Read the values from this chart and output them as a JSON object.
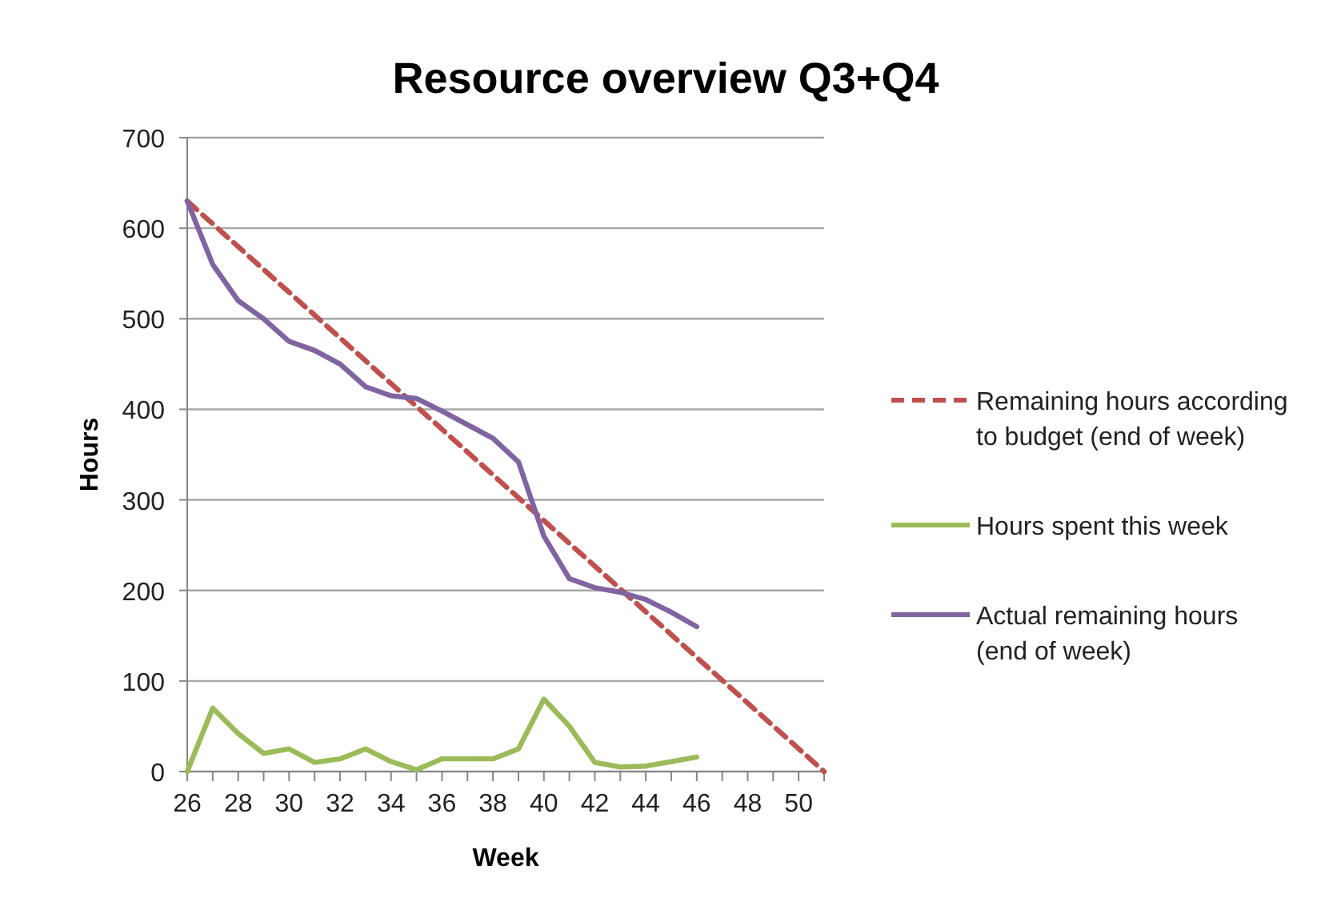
{
  "chart_data": {
    "type": "line",
    "title": "Resource overview Q3+Q4",
    "xlabel": "Week",
    "ylabel": "Hours",
    "xlim": [
      26,
      51
    ],
    "ylim": [
      0,
      700
    ],
    "xticks": [
      26,
      {
        "value": 27,
        "label": null
      },
      28,
      {
        "value": 29,
        "label": null
      },
      30,
      {
        "value": 31,
        "label": null
      },
      32,
      {
        "value": 33,
        "label": null
      },
      34,
      {
        "value": 35,
        "label": null
      },
      36,
      {
        "value": 37,
        "label": null
      },
      38,
      {
        "value": 39,
        "label": null
      },
      40,
      {
        "value": 41,
        "label": null
      },
      42,
      {
        "value": 43,
        "label": null
      },
      44,
      {
        "value": 45,
        "label": null
      },
      46,
      {
        "value": 47,
        "label": null
      },
      48,
      {
        "value": 49,
        "label": null
      },
      50,
      {
        "value": 51,
        "label": null
      }
    ],
    "yticks": [
      0,
      100,
      200,
      300,
      400,
      500,
      600,
      700
    ],
    "grid": "y",
    "legend": "right",
    "marker": "none",
    "series": [
      {
        "name": "Remaining hours according to budget (end of week)",
        "color": "#c0504d",
        "line_style": "dashed",
        "x": [
          26,
          51
        ],
        "values": [
          630,
          0
        ]
      },
      {
        "name": "Hours spent this week",
        "color": "#9bbb59",
        "line_style": "solid",
        "x": [
          26,
          27,
          28,
          29,
          30,
          31,
          32,
          33,
          34,
          35,
          36,
          37,
          38,
          39,
          40,
          41,
          42,
          43,
          44,
          45,
          46
        ],
        "values": [
          0,
          70,
          42,
          20,
          25,
          10,
          14,
          25,
          11,
          2,
          14,
          14,
          14,
          25,
          80,
          50,
          10,
          5,
          6,
          11,
          16
        ]
      },
      {
        "name": "Actual remaining hours (end of week)",
        "color": "#8064a2",
        "line_style": "solid",
        "x": [
          26,
          27,
          28,
          29,
          30,
          31,
          32,
          33,
          34,
          35,
          36,
          37,
          38,
          39,
          40,
          41,
          42,
          43,
          44,
          45,
          46
        ],
        "values": [
          630,
          560,
          520,
          500,
          475,
          465,
          450,
          425,
          415,
          412,
          398,
          383,
          368,
          342,
          260,
          213,
          203,
          198,
          190,
          176,
          160
        ]
      }
    ]
  }
}
